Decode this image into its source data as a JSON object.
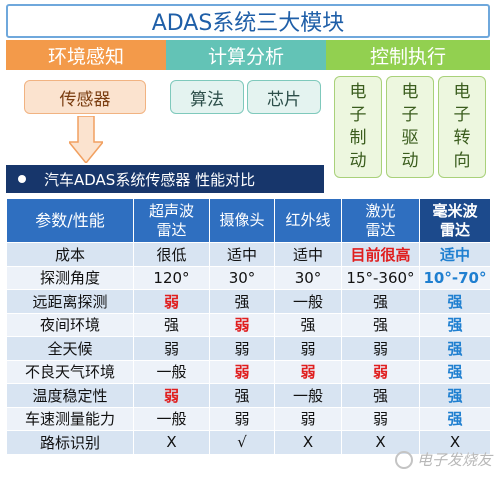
{
  "title": "ADAS系统三大模块",
  "categories": {
    "perception": "环境感知",
    "compute": "计算分析",
    "control": "控制执行"
  },
  "subs": {
    "sensor": "传感器",
    "algorithm": "算法",
    "chip": "芯片",
    "brake": [
      "电",
      "子",
      "制",
      "动"
    ],
    "drive": [
      "电",
      "子",
      "驱",
      "动"
    ],
    "steer": [
      "电",
      "子",
      "转",
      "向"
    ]
  },
  "section": "汽车ADAS系统传感器 性能对比",
  "table": {
    "headers": [
      [
        "参数/性能"
      ],
      [
        "超声波",
        "雷达"
      ],
      [
        "摄像头"
      ],
      [
        "红外线"
      ],
      [
        "激光",
        "雷达"
      ],
      [
        "毫米波",
        "雷达"
      ]
    ],
    "rows": [
      [
        "成本",
        "很低",
        "适中",
        "适中",
        "目前很高",
        "适中"
      ],
      [
        "探测角度",
        "120°",
        "30°",
        "30°",
        "15°-360°",
        "10°-70°"
      ],
      [
        "远距离探测",
        "弱",
        "强",
        "一般",
        "强",
        "强"
      ],
      [
        "夜间环境",
        "强",
        "弱",
        "强",
        "强",
        "强"
      ],
      [
        "全天候",
        "弱",
        "弱",
        "弱",
        "弱",
        "强"
      ],
      [
        "不良天气环境",
        "一般",
        "弱",
        "弱",
        "弱",
        "强"
      ],
      [
        "温度稳定性",
        "弱",
        "强",
        "一般",
        "强",
        "强"
      ],
      [
        "车速测量能力",
        "一般",
        "弱",
        "弱",
        "弱",
        "强"
      ],
      [
        "路标识别",
        "X",
        "√",
        "X",
        "X",
        "X"
      ]
    ],
    "highlight_red": "#e01e1e",
    "highlight_blue": "#1f7fd0"
  },
  "watermark": "电子发烧友"
}
